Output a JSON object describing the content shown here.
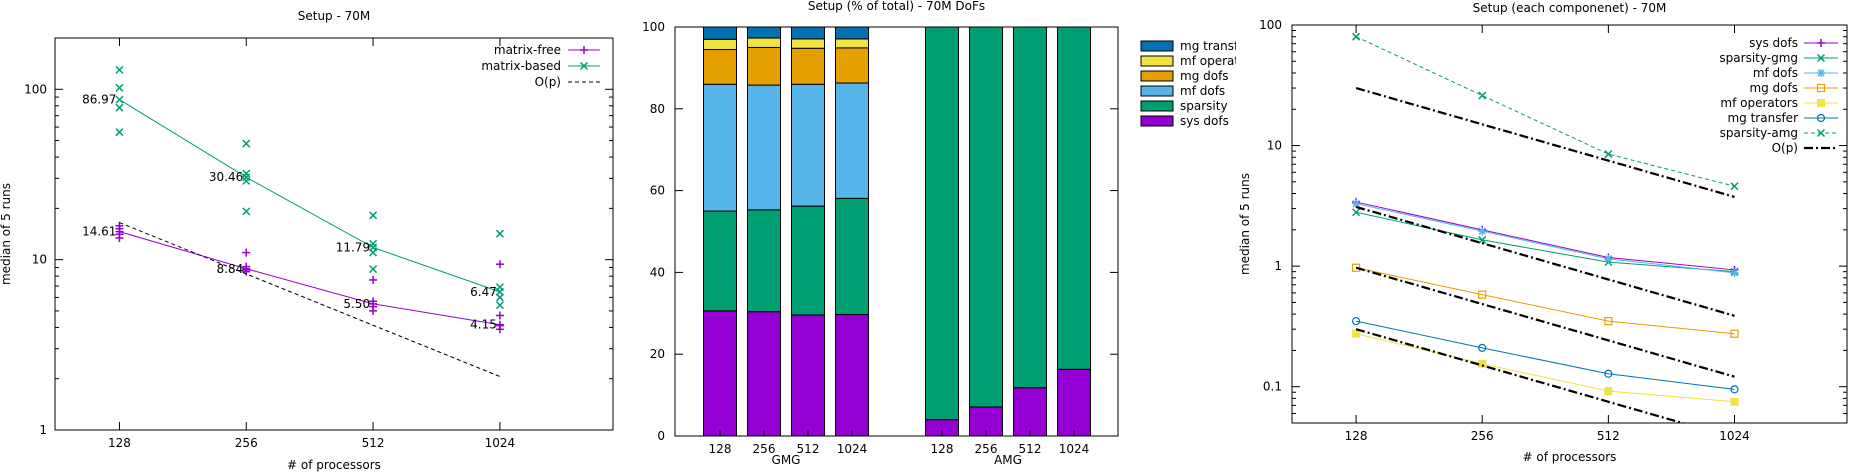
{
  "chart_data": [
    {
      "type": "scatter",
      "title": "Setup - 70M",
      "xlabel": "# of processors",
      "ylabel": "median of 5 runs",
      "x_scale": "log2",
      "y_scale": "log10",
      "xlim": [
        90,
        1900
      ],
      "ylim": [
        1,
        200
      ],
      "x_ticks": [
        128,
        256,
        512,
        1024
      ],
      "y_ticks": [
        1,
        10,
        100
      ],
      "legend_position": "top-right",
      "series": [
        {
          "name": "matrix-free",
          "color": "#9400d3",
          "marker": "plus",
          "median": [
            {
              "x": 128,
              "y": 14.61
            },
            {
              "x": 256,
              "y": 8.84
            },
            {
              "x": 512,
              "y": 5.5
            },
            {
              "x": 1024,
              "y": 4.15
            }
          ],
          "runs": [
            {
              "x": 128,
              "values": [
                13.4,
                14.1,
                14.6,
                15.2,
                15.8
              ]
            },
            {
              "x": 256,
              "values": [
                8.5,
                8.7,
                8.84,
                9.1,
                11.0
              ]
            },
            {
              "x": 512,
              "values": [
                5.0,
                5.3,
                5.5,
                5.7,
                7.6
              ]
            },
            {
              "x": 1024,
              "values": [
                3.9,
                4.1,
                4.15,
                4.7,
                9.4
              ]
            }
          ]
        },
        {
          "name": "matrix-based",
          "color": "#009e73",
          "marker": "cross",
          "median": [
            {
              "x": 128,
              "y": 86.97
            },
            {
              "x": 256,
              "y": 30.46
            },
            {
              "x": 512,
              "y": 11.79
            },
            {
              "x": 1024,
              "y": 6.47
            }
          ],
          "runs": [
            {
              "x": 128,
              "values": [
                56,
                78,
                86.97,
                102,
                130
              ]
            },
            {
              "x": 256,
              "values": [
                19.2,
                29,
                30.46,
                32,
                48
              ]
            },
            {
              "x": 512,
              "values": [
                8.8,
                11.0,
                11.79,
                12.4,
                18.2
              ]
            },
            {
              "x": 1024,
              "values": [
                5.4,
                6.0,
                6.47,
                6.9,
                14.2
              ]
            }
          ]
        },
        {
          "name": "O(p)",
          "color": "#000000",
          "style": "dashed",
          "points": [
            {
              "x": 128,
              "y": 16.5
            },
            {
              "x": 1024,
              "y": 2.06
            }
          ]
        }
      ],
      "data_labels": [
        {
          "text": "86.97",
          "x": 128,
          "y": 86.97,
          "series": "matrix-based"
        },
        {
          "text": "30.46",
          "x": 256,
          "y": 30.46,
          "series": "matrix-based"
        },
        {
          "text": "11.79",
          "x": 512,
          "y": 11.79,
          "series": "matrix-based"
        },
        {
          "text": "6.47",
          "x": 1024,
          "y": 6.47,
          "series": "matrix-based"
        },
        {
          "text": "14.61",
          "x": 128,
          "y": 14.61,
          "series": "matrix-free"
        },
        {
          "text": "8.84",
          "x": 256,
          "y": 8.84,
          "series": "matrix-free"
        },
        {
          "text": "5.50",
          "x": 512,
          "y": 5.5,
          "series": "matrix-free"
        },
        {
          "text": "4.15",
          "x": 1024,
          "y": 4.15,
          "series": "matrix-free"
        }
      ]
    },
    {
      "type": "bar",
      "stacked": true,
      "title": "Setup (% of total) - 70M DoFs",
      "ylim": [
        0,
        100
      ],
      "y_ticks": [
        0,
        20,
        40,
        60,
        80,
        100
      ],
      "groups": [
        {
          "label": "GMG",
          "categories": [
            "128",
            "256",
            "512",
            "1024"
          ]
        },
        {
          "label": "AMG",
          "categories": [
            "128",
            "256",
            "512",
            "1024"
          ]
        }
      ],
      "legend_position": "right",
      "series": [
        {
          "name": "sys dofs",
          "color": "#9400d3",
          "values": [
            30.6,
            30.4,
            29.6,
            29.7,
            4.0,
            7.1,
            11.8,
            16.3
          ]
        },
        {
          "name": "sparsity",
          "color": "#009e73",
          "values": [
            24.4,
            24.9,
            26.6,
            28.4,
            96.0,
            92.9,
            88.2,
            83.7
          ]
        },
        {
          "name": "mf dofs",
          "color": "#56b4e9",
          "values": [
            31.0,
            30.5,
            29.8,
            28.2,
            0,
            0,
            0,
            0
          ]
        },
        {
          "name": "mg dofs",
          "color": "#e69f00",
          "values": [
            8.5,
            9.2,
            8.8,
            8.6,
            0,
            0,
            0,
            0
          ]
        },
        {
          "name": "mf operat",
          "color": "#f0e442",
          "values": [
            2.5,
            2.3,
            2.3,
            2.2,
            0,
            0,
            0,
            0
          ]
        },
        {
          "name": "mg transf",
          "color": "#0072b2",
          "values": [
            3.0,
            2.7,
            2.9,
            2.9,
            0,
            0,
            0,
            0
          ]
        }
      ]
    },
    {
      "type": "line",
      "title": "Setup (each componenet) - 70M",
      "xlabel": "# of processors",
      "ylabel": "median of 5 runs",
      "x_scale": "log2",
      "y_scale": "log10",
      "xlim": [
        90,
        1900
      ],
      "ylim": [
        0.05,
        100
      ],
      "x_ticks": [
        128,
        256,
        512,
        1024
      ],
      "y_ticks": [
        0.1,
        1,
        10,
        100
      ],
      "y_tick_labels": [
        "0.1",
        "1",
        "10",
        "100"
      ],
      "legend_position": "top-right",
      "series": [
        {
          "name": "sys dofs",
          "color": "#9400d3",
          "marker": "plus",
          "x": [
            128,
            256,
            512,
            1024
          ],
          "y": [
            3.4,
            2.0,
            1.18,
            0.93
          ]
        },
        {
          "name": "sparsity-gmg",
          "color": "#009e73",
          "marker": "cross",
          "x": [
            128,
            256,
            512,
            1024
          ],
          "y": [
            2.8,
            1.65,
            1.08,
            0.9
          ]
        },
        {
          "name": "mf dofs",
          "color": "#56b4e9",
          "marker": "star",
          "x": [
            128,
            256,
            512,
            1024
          ],
          "y": [
            3.3,
            1.95,
            1.15,
            0.88
          ]
        },
        {
          "name": "mg dofs",
          "color": "#e69f00",
          "marker": "square-open",
          "x": [
            128,
            256,
            512,
            1024
          ],
          "y": [
            0.97,
            0.58,
            0.35,
            0.275
          ]
        },
        {
          "name": "mf operators",
          "color": "#f0e442",
          "marker": "square-filled",
          "x": [
            128,
            256,
            512,
            1024
          ],
          "y": [
            0.275,
            0.155,
            0.092,
            0.075
          ]
        },
        {
          "name": "mg transfer",
          "color": "#0072b2",
          "marker": "circle-open",
          "x": [
            128,
            256,
            512,
            1024
          ],
          "y": [
            0.35,
            0.21,
            0.128,
            0.095
          ]
        },
        {
          "name": "sparsity-amg",
          "color": "#009e73",
          "marker": "cross",
          "dashed": true,
          "x": [
            128,
            256,
            512,
            1024
          ],
          "y": [
            80,
            26,
            8.5,
            4.6
          ]
        },
        {
          "name": "O(p)",
          "color": "#000000",
          "dashed": true,
          "reference_lines": [
            {
              "x": [
                128,
                1024
              ],
              "y": [
                30,
                3.75
              ]
            },
            {
              "x": [
                128,
                1024
              ],
              "y": [
                3.1,
                0.3875
              ]
            },
            {
              "x": [
                128,
                1024
              ],
              "y": [
                0.97,
                0.121
              ]
            },
            {
              "x": [
                128,
                1024
              ],
              "y": [
                0.3,
                0.0375
              ]
            }
          ]
        }
      ]
    }
  ]
}
